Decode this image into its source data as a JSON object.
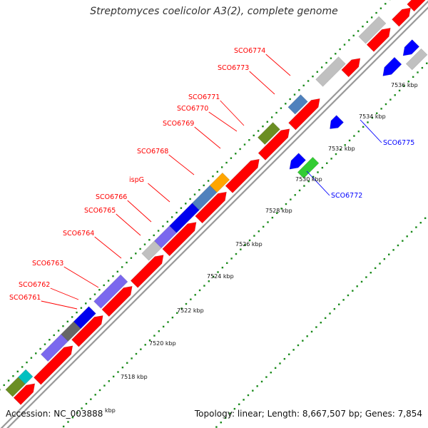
{
  "title": "Streptomyces coelicolor A3(2), complete genome",
  "footer": {
    "accession": "Accession: NC_003888",
    "summary": "Topology: linear; Length: 8,667,507 bp; Genes: 7,854"
  },
  "colors": {
    "forward_gene": "#ff0000",
    "reverse_gene": "#0000ff",
    "forward_label": "#ff0000",
    "reverse_label": "#0000ff",
    "backbone": "#999999",
    "tick_dots": "#1a8a1a",
    "tick_label": "#111111"
  },
  "axis": {
    "unit": "kbp",
    "tick_labels": [
      "7518 kbp",
      "7520 kbp",
      "7522 kbp",
      "7524 kbp",
      "7526 kbp",
      "7528 kbp",
      "7530 kbp",
      "7532 kbp",
      "7534 kbp",
      "7536 kbp"
    ],
    "partial_tick_label": "kbp"
  },
  "forward_labels": [
    "SCO6761",
    "SCO6762",
    "SCO6763",
    "SCO6764",
    "SCO6765",
    "SCO6766",
    "ispG",
    "SCO6768",
    "SCO6769",
    "SCO6770",
    "SCO6771",
    "SCO6773",
    "SCO6774"
  ],
  "reverse_labels": [
    "SCO6772",
    "SCO6775"
  ],
  "category_colors": [
    "#7b68ee",
    "#0000ee",
    "#666666",
    "#c0c0c0",
    "#4f81bd",
    "#ffa500",
    "#6b8e23",
    "#00c0c0",
    "#33cc33"
  ]
}
